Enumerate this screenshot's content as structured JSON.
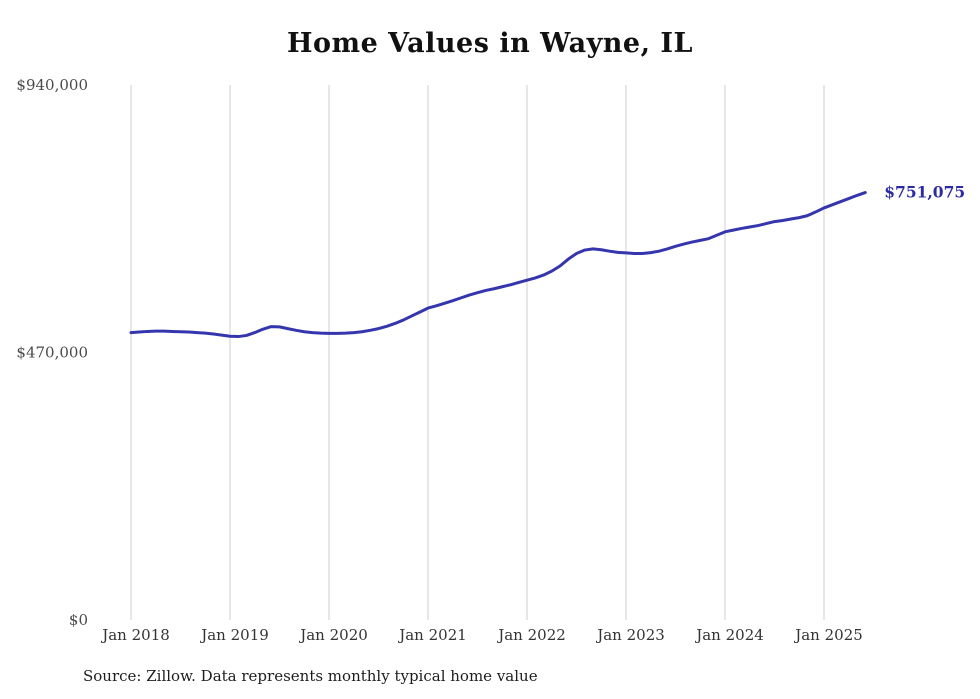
{
  "title": "Home Values in Wayne, IL",
  "source_note": "Source: Zillow. Data represents monthly typical home value",
  "end_label": "$751,075",
  "colors": {
    "line": "#3535ae",
    "end_label": "#2b2ba5",
    "grid": "#cfcfcf",
    "y_text": "#4a4a4a",
    "x_text": "#333333",
    "title": "#111111"
  },
  "chart_data": {
    "type": "line",
    "title": "Home Values in Wayne, IL",
    "x_start": "Jan 2018",
    "x_end": "Jun 2025",
    "x_tick_labels": [
      "Jan 2018",
      "Jan 2019",
      "Jan 2020",
      "Jan 2021",
      "Jan 2022",
      "Jan 2023",
      "Jan 2024",
      "Jan 2025"
    ],
    "y_ticks": [
      0,
      470000,
      940000
    ],
    "y_tick_labels": [
      "$0",
      "$470,000",
      "$940,000"
    ],
    "ylim": [
      0,
      940000
    ],
    "legend": "none",
    "grid": "vertical-only",
    "final_value": 751075,
    "values": [
      505000,
      506000,
      507000,
      507500,
      507500,
      507000,
      506500,
      506000,
      505000,
      504000,
      502500,
      500500,
      498500,
      498000,
      500000,
      505000,
      511000,
      515500,
      515000,
      512000,
      509000,
      506500,
      505000,
      504000,
      503500,
      503500,
      504000,
      505000,
      506500,
      509000,
      512000,
      516000,
      521000,
      527000,
      534000,
      541000,
      548000,
      552000,
      556500,
      561000,
      566000,
      571000,
      575000,
      579000,
      582000,
      585500,
      589000,
      593000,
      597000,
      601000,
      606000,
      613000,
      622000,
      634000,
      644000,
      650000,
      652000,
      650500,
      648000,
      646000,
      645000,
      644000,
      644000,
      645500,
      648000,
      652000,
      656500,
      660500,
      664000,
      667000,
      670000,
      676000,
      682000,
      685000,
      688000,
      690500,
      693000,
      696500,
      700000,
      702000,
      704500,
      707000,
      710500,
      717000,
      724000,
      729500,
      735000,
      740500,
      746000,
      751075
    ]
  }
}
